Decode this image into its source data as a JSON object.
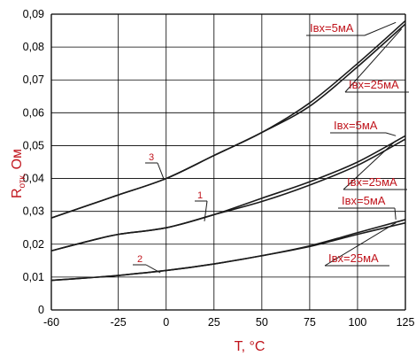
{
  "chart_data": {
    "type": "line",
    "xlabel": "T, °C",
    "ylabel_main": "R",
    "ylabel_sub": "отк,",
    "ylabel_unit": "Ом",
    "xlim": [
      -60,
      125
    ],
    "ylim": [
      0,
      0.09
    ],
    "x_ticks": [
      -60,
      -25,
      0,
      25,
      50,
      75,
      100,
      125
    ],
    "x_tick_labels": [
      "-60",
      "-25",
      "0",
      "25",
      "50",
      "75",
      "100",
      "125"
    ],
    "y_ticks": [
      0,
      0.01,
      0.02,
      0.03,
      0.04,
      0.05,
      0.06,
      0.07,
      0.08,
      0.09
    ],
    "y_tick_labels": [
      "0",
      "0,01",
      "0,02",
      "0,03",
      "0,04",
      "0,05",
      "0,06",
      "0,07",
      "0,08",
      "0,09"
    ],
    "grid": true,
    "series": [
      {
        "curve": "3",
        "current": "Iвх=5мА",
        "x": [
          -60,
          -40,
          -25,
          0,
          25,
          50,
          75,
          100,
          125
        ],
        "y": [
          0.028,
          0.032,
          0.035,
          0.04,
          0.047,
          0.054,
          0.063,
          0.075,
          0.088
        ]
      },
      {
        "curve": "3",
        "current": "Iвх=25мА",
        "x": [
          -60,
          -40,
          -25,
          0,
          25,
          50,
          75,
          100,
          125
        ],
        "y": [
          0.028,
          0.032,
          0.035,
          0.04,
          0.047,
          0.054,
          0.062,
          0.074,
          0.087
        ]
      },
      {
        "curve": "1",
        "current": "Iвх=5мА",
        "x": [
          -60,
          -40,
          -25,
          0,
          25,
          50,
          75,
          100,
          125
        ],
        "y": [
          0.018,
          0.021,
          0.023,
          0.025,
          0.029,
          0.034,
          0.039,
          0.045,
          0.053
        ]
      },
      {
        "curve": "1",
        "current": "Iвх=25мА",
        "x": [
          -60,
          -40,
          -25,
          0,
          25,
          50,
          75,
          100,
          125
        ],
        "y": [
          0.018,
          0.021,
          0.023,
          0.025,
          0.029,
          0.033,
          0.038,
          0.044,
          0.052
        ]
      },
      {
        "curve": "2",
        "current": "Iвх=5мА",
        "x": [
          -60,
          -40,
          -25,
          0,
          25,
          50,
          75,
          100,
          125
        ],
        "y": [
          0.009,
          0.0098,
          0.0105,
          0.012,
          0.014,
          0.0165,
          0.0195,
          0.0235,
          0.0275
        ]
      },
      {
        "curve": "2",
        "current": "Iвх=25мА",
        "x": [
          -60,
          -40,
          -25,
          0,
          25,
          50,
          75,
          100,
          125
        ],
        "y": [
          0.009,
          0.0098,
          0.0105,
          0.012,
          0.014,
          0.0165,
          0.0193,
          0.023,
          0.0265
        ]
      }
    ],
    "curve_labels": [
      "3",
      "1",
      "2"
    ],
    "annotations": [
      {
        "text": "Iвх=5мА",
        "curve": "3",
        "x": 120,
        "y": 0.0875
      },
      {
        "text": "Iвх=25мА",
        "curve": "3",
        "x": 123,
        "y": 0.0855
      },
      {
        "text": "Iвх=5мА",
        "curve": "1",
        "x": 120,
        "y": 0.053
      },
      {
        "text": "Iвх=25мА",
        "curve": "1",
        "x": 120,
        "y": 0.0515
      },
      {
        "text": "Iвх=5мА",
        "curve": "2",
        "x": 120,
        "y": 0.0275
      },
      {
        "text": "Iвх=25мА",
        "curve": "2",
        "x": 120,
        "y": 0.0265
      }
    ],
    "colors": {
      "curves": "#1a1a1a",
      "grid": "#000000",
      "labels": "#c0141c",
      "ticks": "#000000"
    }
  }
}
